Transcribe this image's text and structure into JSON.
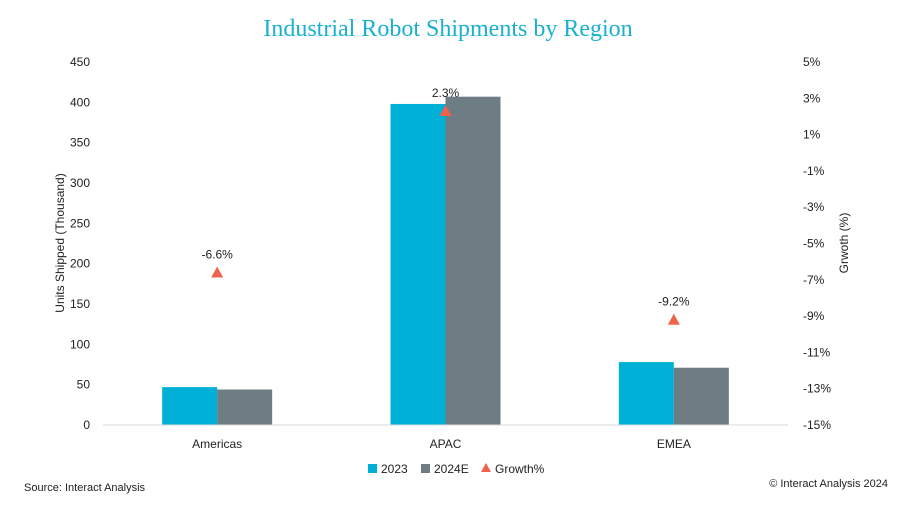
{
  "chart_data": {
    "type": "bar",
    "title": "Industrial Robot Shipments by Region",
    "categories": [
      "Americas",
      "APAC",
      "EMEA"
    ],
    "series": [
      {
        "name": "2023",
        "values": [
          47,
          398,
          78
        ],
        "color": "#00b0d6"
      },
      {
        "name": "2024E",
        "values": [
          44,
          407,
          71
        ],
        "color": "#6e7c83"
      }
    ],
    "growth": {
      "name": "Growth%",
      "values": [
        -6.6,
        2.3,
        -9.2
      ],
      "labels": [
        "-6.6%",
        "2.3%",
        "-9.2%"
      ],
      "color": "#f0634b",
      "marker": "triangle"
    },
    "ylabel": "Units Shipped (Thousand)",
    "y2label": "Grwoth (%)",
    "ylim": [
      0,
      450
    ],
    "yticks": [
      0,
      50,
      100,
      150,
      200,
      250,
      300,
      350,
      400,
      450
    ],
    "y2lim": [
      -15,
      5
    ],
    "y2ticks": [
      5,
      3,
      1,
      -1,
      -3,
      -5,
      -7,
      -9,
      -11,
      -13,
      -15
    ],
    "y2ticklabels": [
      "5%",
      "3%",
      "1%",
      "-1%",
      "-3%",
      "-5%",
      "-7%",
      "-9%",
      "-11%",
      "-13%",
      "-15%"
    ],
    "grid": false,
    "legend_position": "bottom-center",
    "title_color": "#1ab0d0"
  },
  "footer": {
    "source": "Source: Interact Analysis",
    "copyright": "© Interact Analysis 2024"
  }
}
